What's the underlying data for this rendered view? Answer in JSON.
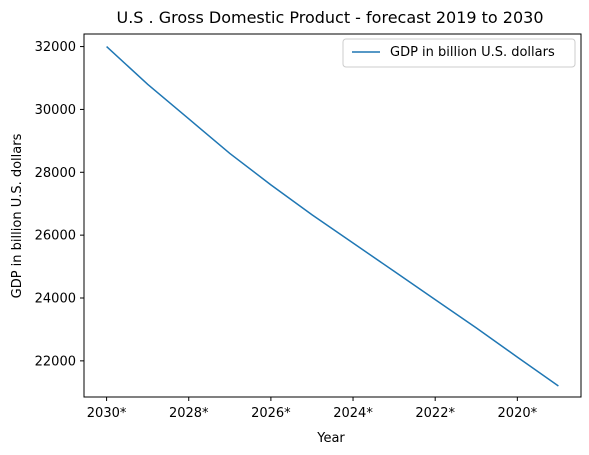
{
  "chart_data": {
    "type": "line",
    "title": "U.S . Gross Domestic Product - forecast 2019 to 2030",
    "xlabel": "Year",
    "ylabel": "GDP in billion U.S. dollars",
    "x": [
      "2030*",
      "2029*",
      "2028*",
      "2027*",
      "2026*",
      "2025*",
      "2024*",
      "2023*",
      "2022*",
      "2021*",
      "2020*",
      "2019*"
    ],
    "xtick_labels": [
      "2030*",
      "2028*",
      "2026*",
      "2024*",
      "2022*",
      "2020*"
    ],
    "series": [
      {
        "name": "GDP in billion U.S. dollars",
        "color": "#1f77b4",
        "values": [
          32000,
          30800,
          29700,
          28600,
          27600,
          26650,
          25750,
          24850,
          23950,
          23050,
          22120,
          21200
        ]
      }
    ],
    "ylim": [
      20850,
      32400
    ],
    "yticks": [
      22000,
      24000,
      26000,
      28000,
      30000,
      32000
    ],
    "grid": false,
    "legend_position": "upper right"
  }
}
